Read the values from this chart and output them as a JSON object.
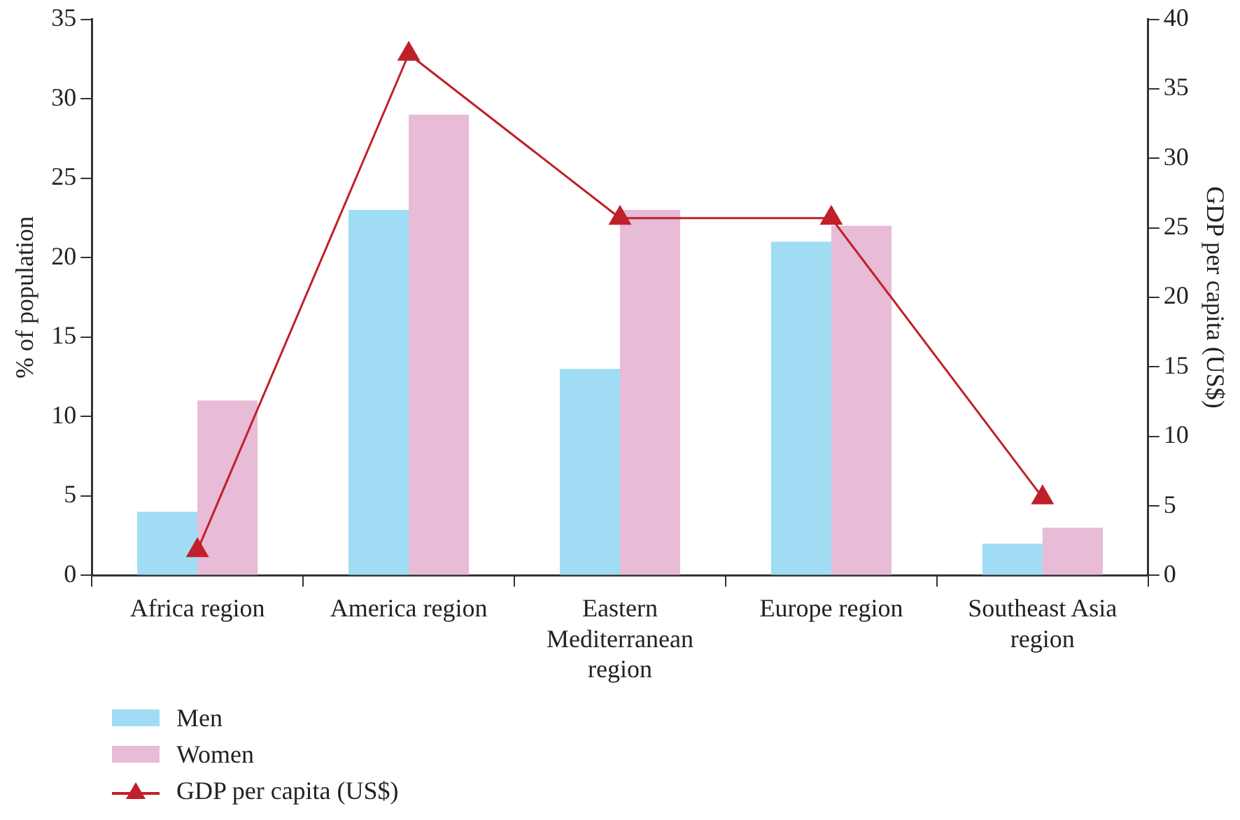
{
  "chart_data": {
    "type": "bar",
    "ylabel": "% of population",
    "y2label": "GDP per capita (US$)",
    "categories": [
      "Africa region",
      "America region",
      "Eastern Mediterranean region",
      "Europe region",
      "Southeast Asia region"
    ],
    "series": [
      {
        "name": "Men",
        "color": "#a0ddf5",
        "values": [
          4,
          23,
          13,
          21,
          2
        ]
      },
      {
        "name": "Women",
        "color": "#e8bbd6",
        "values": [
          11,
          29,
          23,
          22,
          3
        ]
      },
      {
        "name": "GDP per capita (US$)",
        "type": "line",
        "axis": "y2",
        "color": "#c0202a",
        "marker": "triangle",
        "values": [
          1.8,
          37.5,
          25.7,
          25.7,
          5.6
        ]
      }
    ],
    "ylim": [
      0,
      35
    ],
    "yticks": [
      0,
      5,
      10,
      15,
      20,
      25,
      30,
      35
    ],
    "y2lim": [
      0,
      40
    ],
    "y2ticks": [
      0,
      5,
      10,
      15,
      20,
      25,
      30,
      35,
      40
    ],
    "legend": "bottom left",
    "grid": false
  }
}
